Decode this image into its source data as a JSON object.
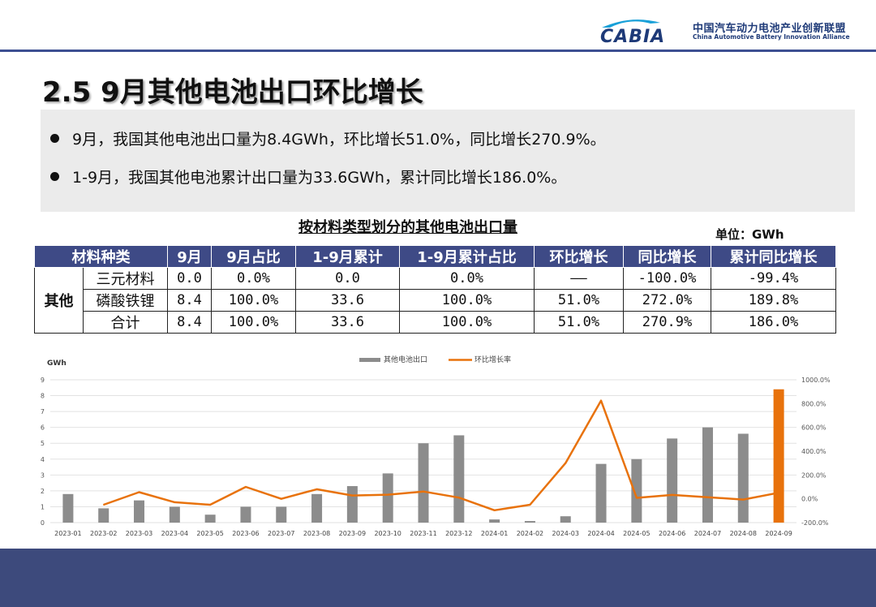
{
  "logo": {
    "mark": "CABIA",
    "name_cn": "中国汽车动力电池产业创新联盟",
    "name_en": "China Automotive Battery Innovation Alliance"
  },
  "page_title": "2.5 9月其他电池出口环比增长",
  "bullets": [
    "9月，我国其他电池出口量为8.4GWh，环比增长51.0%，同比增长270.9%。",
    "1-9月，我国其他电池累计出口量为33.6GWh，累计同比增长186.0%。"
  ],
  "table": {
    "title": "按材料类型划分的其他电池出口量",
    "unit": "单位：GWh",
    "headers": [
      "材料种类",
      "9月",
      "9月占比",
      "1-9月累计",
      "1-9月累计占比",
      "环比增长",
      "同比增长",
      "累计同比增长"
    ],
    "group": "其他",
    "rows": [
      [
        "三元材料",
        "0.0",
        "0.0%",
        "0.0",
        "0.0%",
        "——",
        "-100.0%",
        "-99.4%"
      ],
      [
        "磷酸铁锂",
        "8.4",
        "100.0%",
        "33.6",
        "100.0%",
        "51.0%",
        "272.0%",
        "189.8%"
      ],
      [
        "合计",
        "8.4",
        "100.0%",
        "33.6",
        "100.0%",
        "51.0%",
        "270.9%",
        "186.0%"
      ]
    ]
  },
  "colors": {
    "bar": "#8c8c8c",
    "bar_highlight": "#e8720c",
    "line": "#e8720c",
    "header_bg": "#3e4a86",
    "footer_bg": "#3d4a7c"
  },
  "chart_data": {
    "type": "bar",
    "y_unit_label": "GWh",
    "categories": [
      "2023-01",
      "2023-02",
      "2023-03",
      "2023-04",
      "2023-05",
      "2023-06",
      "2023-07",
      "2023-08",
      "2023-09",
      "2023-10",
      "2023-11",
      "2023-12",
      "2024-01",
      "2024-02",
      "2024-03",
      "2024-04",
      "2024-05",
      "2024-06",
      "2024-07",
      "2024-08",
      "2024-09"
    ],
    "series": [
      {
        "name": "其他电池出口",
        "type": "bar",
        "axis": "left",
        "values": [
          1.8,
          0.9,
          1.4,
          1.0,
          0.5,
          1.0,
          1.0,
          1.8,
          2.3,
          3.1,
          5.0,
          5.5,
          0.2,
          0.1,
          0.4,
          3.7,
          4.0,
          5.3,
          6.0,
          5.6,
          8.4
        ]
      },
      {
        "name": "环比增长率",
        "type": "line",
        "axis": "right",
        "values": [
          null,
          -50.0,
          55.6,
          -28.6,
          -50.0,
          100.0,
          0.0,
          80.0,
          27.8,
          34.8,
          61.3,
          10.0,
          -96.4,
          -50.0,
          300.0,
          825.0,
          8.1,
          32.5,
          13.2,
          -6.7,
          51.0
        ]
      }
    ],
    "highlight_index": 20,
    "ylim_left": [
      0,
      9
    ],
    "yticks_left": [
      0,
      1,
      2,
      3,
      4,
      5,
      6,
      7,
      8,
      9
    ],
    "ylim_right": [
      -200,
      1000
    ],
    "yticks_right_labels": [
      "-200.0%",
      "0.0%",
      "200.0%",
      "400.0%",
      "600.0%",
      "800.0%",
      "1000.0%"
    ],
    "yticks_right_values": [
      -200,
      0,
      200,
      400,
      600,
      800,
      1000
    ],
    "legend_position": "top-center",
    "grid": true
  }
}
